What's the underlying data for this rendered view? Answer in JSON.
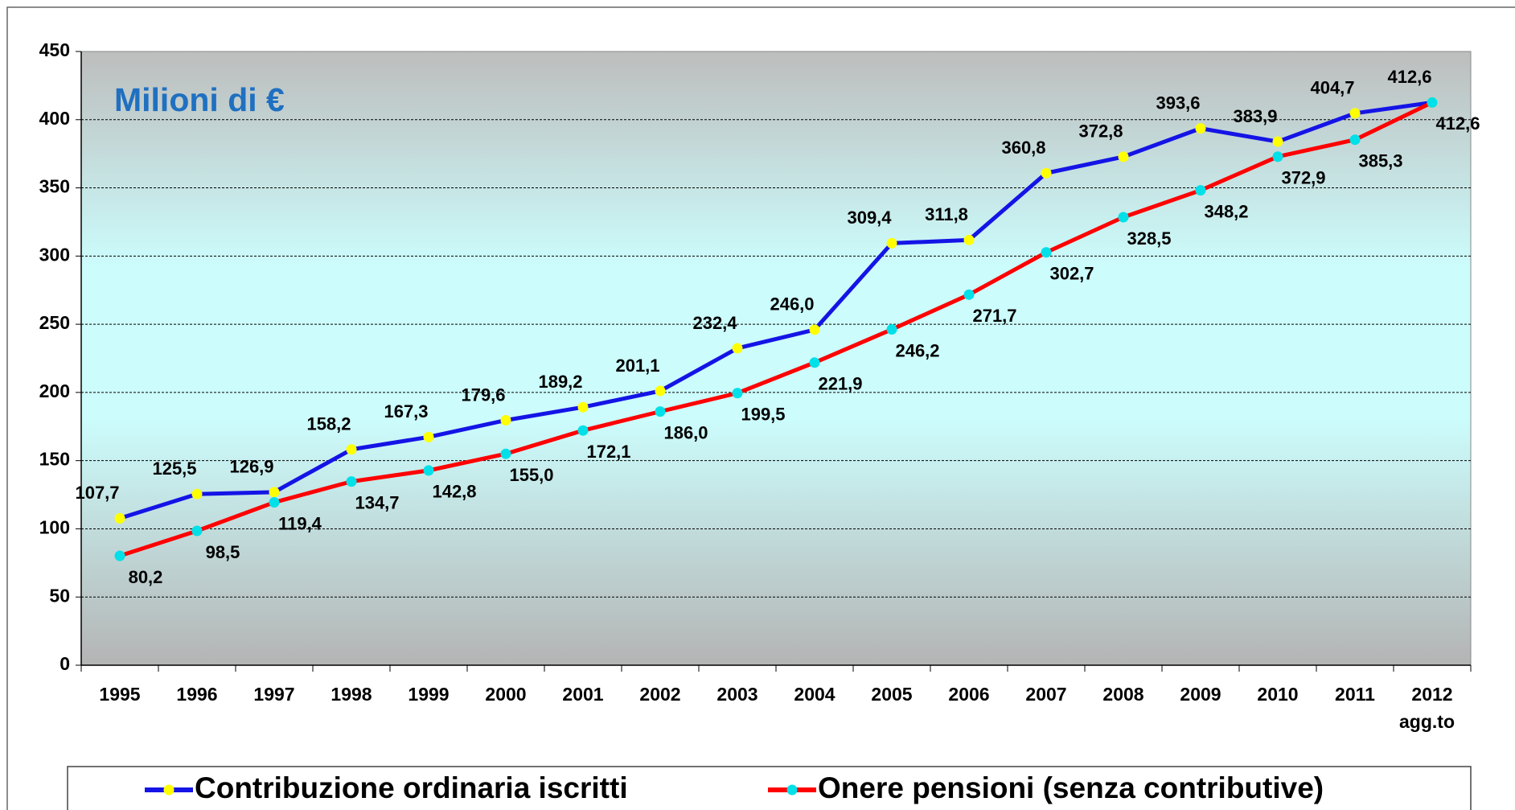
{
  "chart_data": {
    "type": "line",
    "annotation": "Milioni di €",
    "categories": [
      "1995",
      "1996",
      "1997",
      "1998",
      "1999",
      "2000",
      "2001",
      "2002",
      "2003",
      "2004",
      "2005",
      "2006",
      "2007",
      "2008",
      "2009",
      "2010",
      "2011",
      "2012\nagg.to"
    ],
    "series": [
      {
        "name": "Contribuzione ordinaria iscritti",
        "color": "#1414e6",
        "marker_color": "#ffff00",
        "values": [
          107.7,
          125.5,
          126.9,
          158.2,
          167.3,
          179.6,
          189.2,
          201.1,
          232.4,
          246.0,
          309.4,
          311.8,
          360.8,
          372.8,
          393.6,
          383.9,
          404.7,
          412.6
        ],
        "value_labels": [
          "107,7",
          "125,5",
          "126,9",
          "158,2",
          "167,3",
          "179,6",
          "189,2",
          "201,1",
          "232,4",
          "246,0",
          "309,4",
          "311,8",
          "360,8",
          "372,8",
          "393,6",
          "383,9",
          "404,7",
          "412,6"
        ]
      },
      {
        "name": "Onere pensioni (senza contributive)",
        "color": "#ff0000",
        "marker_color": "#00e0e8",
        "values": [
          80.2,
          98.5,
          119.4,
          134.7,
          142.8,
          155.0,
          172.1,
          186.0,
          199.5,
          221.9,
          246.2,
          271.7,
          302.7,
          328.5,
          348.2,
          372.9,
          385.3,
          412.6
        ],
        "value_labels": [
          "80,2",
          "98,5",
          "119,4",
          "134,7",
          "142,8",
          "155,0",
          "172,1",
          "186,0",
          "199,5",
          "221,9",
          "246,2",
          "271,7",
          "302,7",
          "328,5",
          "348,2",
          "372,9",
          "385,3",
          "412,6"
        ]
      }
    ],
    "ylim": [
      0,
      450
    ],
    "yticks": [
      0,
      50,
      100,
      150,
      200,
      250,
      300,
      350,
      400,
      450
    ],
    "grid": true
  }
}
